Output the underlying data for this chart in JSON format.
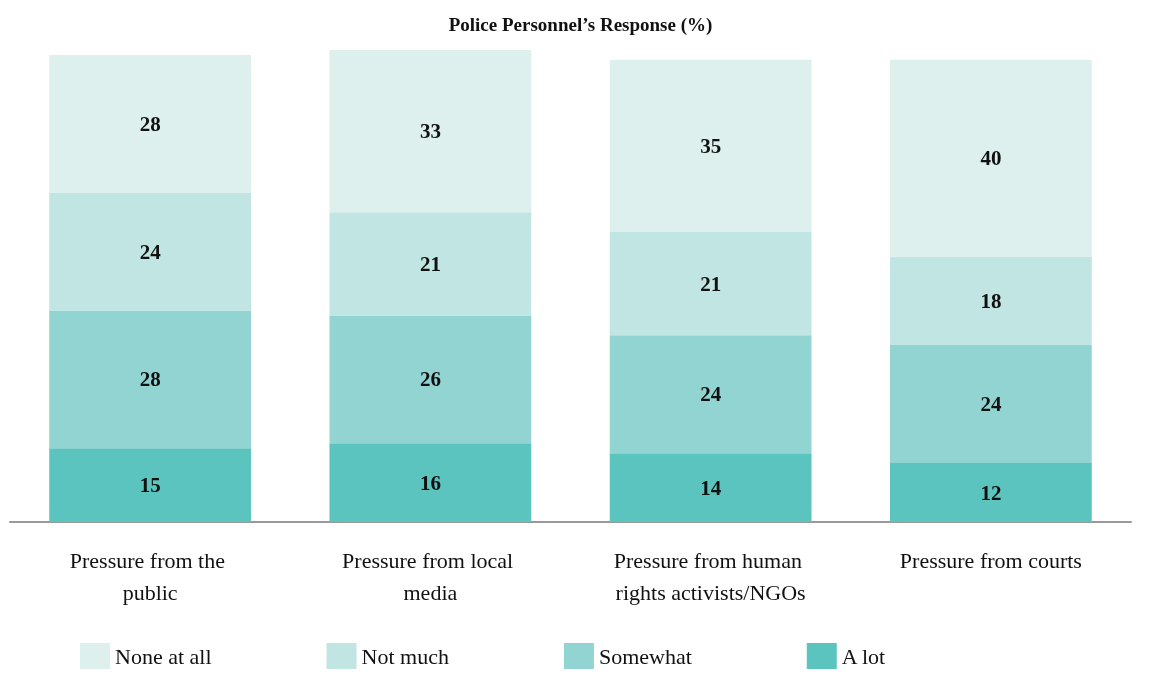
{
  "chart_data": {
    "type": "bar",
    "title": "Police Personnel’s Response (%)",
    "stacked": true,
    "data_labels": true,
    "legend": "bottom",
    "categories": [
      "Pressure from the public",
      "Pressure from local media",
      "Pressure from human rights activists/NGOs",
      "Pressure from courts"
    ],
    "series": [
      {
        "name": "A lot",
        "color": "#5bc4be",
        "values": [
          15,
          16,
          14,
          12
        ]
      },
      {
        "name": "Somewhat",
        "color": "#92d4d1",
        "values": [
          28,
          26,
          24,
          24
        ]
      },
      {
        "name": "Not much",
        "color": "#c0e5e2",
        "values": [
          24,
          21,
          21,
          18
        ]
      },
      {
        "name": "None at all",
        "color": "#ddf0ee",
        "values": [
          28,
          33,
          35,
          40
        ]
      }
    ]
  }
}
